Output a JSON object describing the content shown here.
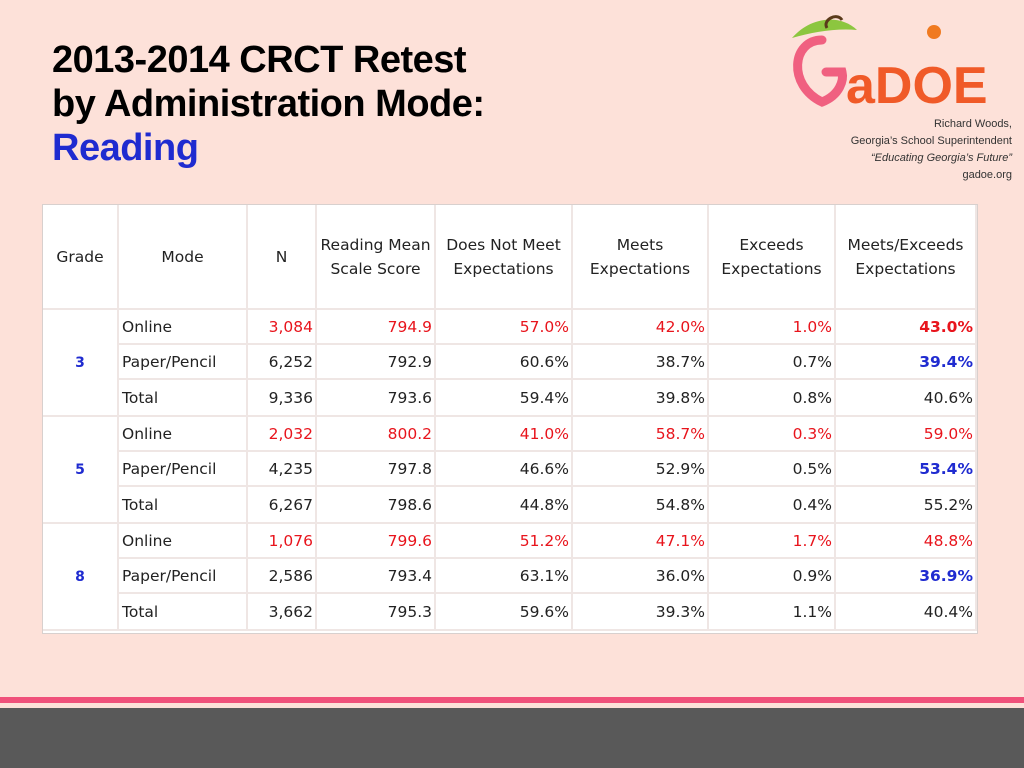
{
  "title": {
    "line1": "2013-2014 CRCT Retest",
    "line2": "by Administration Mode:",
    "subject": "Reading"
  },
  "logo": {
    "text": "aDOE"
  },
  "info": {
    "name": "Richard Woods,",
    "role": "Georgia’s School Superintendent",
    "motto": "“Educating Georgia’s Future”",
    "site": "gadoe.org"
  },
  "table": {
    "headers": [
      "Grade",
      "Mode",
      "N",
      "Reading Mean Scale Score",
      "Does Not Meet Expectations",
      "Meets Expectations",
      "Exceeds Expectations",
      "Meets/Exceeds Expectations"
    ],
    "groups": [
      {
        "grade": "3",
        "rows": [
          [
            "Online",
            "3,084",
            "794.9",
            "57.0%",
            "42.0%",
            "1.0%",
            "43.0%"
          ],
          [
            "Paper/Pencil",
            "6,252",
            "792.9",
            "60.6%",
            "38.7%",
            "0.7%",
            "39.4%"
          ],
          [
            "Total",
            "9,336",
            "793.6",
            "59.4%",
            "39.8%",
            "0.8%",
            "40.6%"
          ]
        ]
      },
      {
        "grade": "5",
        "rows": [
          [
            "Online",
            "2,032",
            "800.2",
            "41.0%",
            "58.7%",
            "0.3%",
            "59.0%"
          ],
          [
            "Paper/Pencil",
            "4,235",
            "797.8",
            "46.6%",
            "52.9%",
            "0.5%",
            "53.4%"
          ],
          [
            "Total",
            "6,267",
            "798.6",
            "44.8%",
            "54.8%",
            "0.4%",
            "55.2%"
          ]
        ]
      },
      {
        "grade": "8",
        "rows": [
          [
            "Online",
            "1,076",
            "799.6",
            "51.2%",
            "47.1%",
            "1.7%",
            "48.8%"
          ],
          [
            "Paper/Pencil",
            "2,586",
            "793.4",
            "63.1%",
            "36.0%",
            "0.9%",
            "36.9%"
          ],
          [
            "Total",
            "3,662",
            "795.3",
            "59.6%",
            "39.3%",
            "1.1%",
            "40.4%"
          ]
        ]
      }
    ]
  }
}
